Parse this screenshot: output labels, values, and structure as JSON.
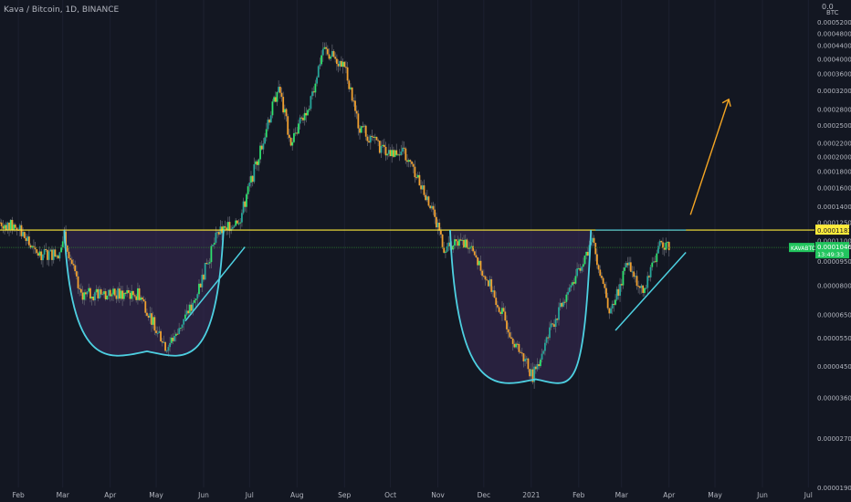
{
  "header": {
    "symbol_title": "Kava / Bitcoin, 1D, BINANCE",
    "top_price_label": "0.0"
  },
  "price_axis": {
    "currency_label": "BTC",
    "ticks": [
      {
        "label": "0.00052000",
        "value": 0.00052
      },
      {
        "label": "0.00048000",
        "value": 0.00048
      },
      {
        "label": "0.00044000",
        "value": 0.00044
      },
      {
        "label": "0.00040000",
        "value": 0.0004
      },
      {
        "label": "0.00036000",
        "value": 0.00036
      },
      {
        "label": "0.00032000",
        "value": 0.00032
      },
      {
        "label": "0.00028000",
        "value": 0.00028
      },
      {
        "label": "0.00025000",
        "value": 0.00025
      },
      {
        "label": "0.00022000",
        "value": 0.00022
      },
      {
        "label": "0.00020000",
        "value": 0.0002
      },
      {
        "label": "0.00018000",
        "value": 0.00018
      },
      {
        "label": "0.00016000",
        "value": 0.00016
      },
      {
        "label": "0.00014000",
        "value": 0.00014
      },
      {
        "label": "0.00012500",
        "value": 0.000125
      },
      {
        "label": "0.00011000",
        "value": 0.00011
      },
      {
        "label": "0.00009500",
        "value": 9.5e-05
      },
      {
        "label": "0.00008000",
        "value": 8e-05
      },
      {
        "label": "0.00006500",
        "value": 6.5e-05
      },
      {
        "label": "0.00005500",
        "value": 5.5e-05
      },
      {
        "label": "0.00004500",
        "value": 4.5e-05
      },
      {
        "label": "0.00003600",
        "value": 3.6e-05
      },
      {
        "label": "0.00002700",
        "value": 2.7e-05
      },
      {
        "label": "0.00001900",
        "value": 1.9e-05
      }
    ],
    "resistance_label": "0.00011838",
    "ticker_tag": "KAVABTC",
    "last_price_label": "0.00010460",
    "countdown_label": "13:49:33"
  },
  "time_axis": {
    "months": [
      "Feb",
      "Mar",
      "Apr",
      "May",
      "Jun",
      "Jul",
      "Aug",
      "Sep",
      "Oct",
      "Nov",
      "Dec",
      "2021",
      "Feb",
      "Mar",
      "Apr",
      "May",
      "Jun",
      "Jul"
    ]
  },
  "colors": {
    "background": "#131722",
    "up": "#26a69a",
    "up_bright": "#2ee06e",
    "down": "#f0a030",
    "resistance": "#ffeb3b",
    "current_price": "#2e7d32",
    "last_price_tag": "#22c55e",
    "pattern_curve": "#4dd0e1",
    "pattern_fill": "#3b2a55",
    "projection_arrow": "#f5a623",
    "axis_text": "#b2b5be"
  },
  "chart_data": {
    "type": "candlestick",
    "title": "Kava / Bitcoin, 1D, BINANCE",
    "y_scale": "log",
    "ylim": [
      1.7e-05,
      0.00058
    ],
    "resistance_level": 0.00011838,
    "last_price": 0.0001046,
    "x_range": [
      "2020-01-20",
      "2021-07-05"
    ],
    "price_path": [
      {
        "date": "2020-01-20",
        "close": 0.000125
      },
      {
        "date": "2020-02-01",
        "close": 0.00012
      },
      {
        "date": "2020-02-12",
        "close": 0.0001
      },
      {
        "date": "2020-02-28",
        "close": 0.0001
      },
      {
        "date": "2020-03-02",
        "close": 0.000115
      },
      {
        "date": "2020-03-12",
        "close": 7.5e-05
      },
      {
        "date": "2020-04-01",
        "close": 7.5e-05
      },
      {
        "date": "2020-04-20",
        "close": 7.5e-05
      },
      {
        "date": "2020-05-08",
        "close": 5.1e-05
      },
      {
        "date": "2020-05-25",
        "close": 7e-05
      },
      {
        "date": "2020-06-10",
        "close": 0.000115
      },
      {
        "date": "2020-06-25",
        "close": 0.00013
      },
      {
        "date": "2020-07-08",
        "close": 0.00021
      },
      {
        "date": "2020-07-20",
        "close": 0.00033
      },
      {
        "date": "2020-07-28",
        "close": 0.00022
      },
      {
        "date": "2020-08-10",
        "close": 0.0003
      },
      {
        "date": "2020-08-18",
        "close": 0.00043
      },
      {
        "date": "2020-09-01",
        "close": 0.00038
      },
      {
        "date": "2020-09-10",
        "close": 0.00025
      },
      {
        "date": "2020-09-25",
        "close": 0.00021
      },
      {
        "date": "2020-10-10",
        "close": 0.000205
      },
      {
        "date": "2020-10-25",
        "close": 0.00015
      },
      {
        "date": "2020-11-05",
        "close": 0.000105
      },
      {
        "date": "2020-11-20",
        "close": 0.000108
      },
      {
        "date": "2020-12-05",
        "close": 8e-05
      },
      {
        "date": "2020-12-20",
        "close": 5.5e-05
      },
      {
        "date": "2021-01-02",
        "close": 4.2e-05
      },
      {
        "date": "2021-01-15",
        "close": 6e-05
      },
      {
        "date": "2021-02-01",
        "close": 9e-05
      },
      {
        "date": "2021-02-10",
        "close": 0.00011
      },
      {
        "date": "2021-02-22",
        "close": 6.5e-05
      },
      {
        "date": "2021-03-05",
        "close": 9.5e-05
      },
      {
        "date": "2021-03-15",
        "close": 7.5e-05
      },
      {
        "date": "2021-03-25",
        "close": 0.000105
      },
      {
        "date": "2021-04-01",
        "close": 0.0001046
      }
    ]
  }
}
